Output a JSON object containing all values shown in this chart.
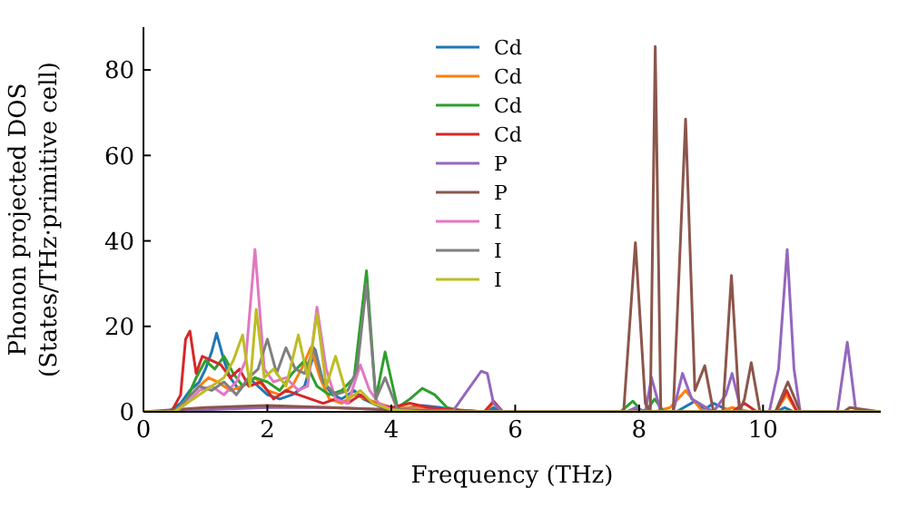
{
  "chart_data": {
    "type": "line",
    "xlabel": "Frequency (THz)",
    "ylabel": "Phonon projected DOS\n(States/THz·primitive cell)",
    "xlim": [
      0,
      11.9
    ],
    "ylim": [
      0,
      90
    ],
    "xticks": [
      0,
      2,
      4,
      6,
      8,
      10
    ],
    "yticks": [
      0,
      20,
      40,
      60,
      80
    ],
    "legend": "top",
    "grid": false,
    "series": [
      {
        "name": "Cd",
        "color": "#1f77b4",
        "x": [
          0,
          0.4,
          0.6,
          0.75,
          0.9,
          1.0,
          1.1,
          1.18,
          1.3,
          1.4,
          1.55,
          1.7,
          1.85,
          2.0,
          2.2,
          2.4,
          2.6,
          2.77,
          2.9,
          3.05,
          3.2,
          3.4,
          3.55,
          3.7,
          3.85,
          4.0,
          4.3,
          4.5,
          4.8,
          5.0,
          5.5,
          5.65,
          5.8,
          7.8,
          7.95,
          8.1,
          8.3,
          8.6,
          8.9,
          9.05,
          9.2,
          9.5,
          9.8,
          10.2,
          10.35,
          10.5,
          11.9
        ],
        "values": [
          0,
          0,
          2,
          5,
          7,
          10,
          14,
          18.4,
          12,
          8,
          5,
          8,
          6,
          4,
          3,
          4,
          6,
          14.6,
          7,
          4,
          3,
          5,
          3,
          2,
          1,
          0.5,
          1,
          1.5,
          1,
          0.5,
          0,
          1,
          0,
          0,
          1,
          0,
          0,
          0,
          2.5,
          0.5,
          2,
          0,
          0,
          0,
          1,
          0,
          0
        ]
      },
      {
        "name": "Cd",
        "color": "#ff7f0e",
        "x": [
          0.7,
          0.9,
          1.05,
          1.2,
          1.4,
          1.6,
          1.8,
          2.0,
          2.2,
          2.4,
          2.55,
          2.7,
          2.85,
          3.0,
          3.2,
          3.4,
          3.6,
          3.8,
          4.0,
          4.5,
          5.0,
          5.5,
          5.65,
          5.8,
          7.8,
          8.25,
          8.5,
          8.75,
          9.0,
          9.3,
          9.5,
          9.8,
          10.2,
          10.38,
          10.55,
          11.9
        ],
        "values": [
          3,
          6,
          8,
          7,
          5,
          6,
          8,
          5,
          4,
          6,
          10,
          15,
          8,
          3,
          2,
          4,
          3,
          2,
          1,
          1,
          0.5,
          0,
          2,
          0,
          0,
          0,
          1,
          5,
          0.5,
          0,
          1,
          0,
          0,
          4,
          0,
          0
        ]
      },
      {
        "name": "Cd",
        "color": "#2ca02c",
        "x": [
          0,
          0.5,
          0.7,
          0.85,
          1.0,
          1.15,
          1.3,
          1.45,
          1.6,
          1.8,
          2.0,
          2.2,
          2.4,
          2.6,
          2.8,
          3.0,
          3.2,
          3.4,
          3.6,
          3.75,
          3.9,
          4.1,
          4.3,
          4.5,
          4.7,
          4.9,
          5.2,
          7.7,
          7.9,
          8.05,
          8.15,
          8.25,
          8.4,
          11.9
        ],
        "values": [
          0,
          0,
          3,
          8,
          12,
          10,
          13,
          9,
          6,
          8,
          7,
          5,
          9,
          12,
          6,
          4,
          5,
          8,
          33,
          3,
          14,
          1,
          3,
          5.5,
          4,
          1,
          0,
          0,
          2.5,
          0,
          1,
          3,
          0,
          0
        ]
      },
      {
        "name": "Cd",
        "color": "#d62728",
        "x": [
          0,
          0.45,
          0.6,
          0.68,
          0.75,
          0.85,
          0.95,
          1.1,
          1.25,
          1.4,
          1.55,
          1.7,
          1.9,
          2.1,
          2.3,
          2.5,
          2.7,
          2.9,
          3.1,
          3.3,
          3.5,
          3.7,
          4.0,
          4.3,
          4.6,
          5.0,
          5.5,
          5.65,
          5.8,
          9.5,
          9.7,
          9.9,
          10.2,
          10.38,
          10.55,
          11.9
        ],
        "values": [
          0,
          0,
          4,
          17,
          18.9,
          9,
          13,
          12,
          11,
          8,
          10,
          6,
          7,
          3,
          5,
          4,
          3,
          2,
          3,
          2,
          4,
          2,
          1,
          2,
          1,
          0.5,
          0,
          2.5,
          0,
          0,
          2,
          0,
          0,
          5,
          0,
          0
        ]
      },
      {
        "name": "P",
        "color": "#9467bd",
        "x": [
          0,
          1.0,
          2.0,
          3.0,
          4.0,
          5.0,
          5.45,
          5.55,
          5.65,
          5.8,
          7.8,
          7.95,
          8.1,
          8.2,
          8.35,
          8.55,
          8.7,
          8.85,
          9.2,
          9.4,
          9.5,
          9.65,
          10.1,
          10.25,
          10.39,
          10.5,
          10.6,
          11.2,
          11.36,
          11.5,
          11.9
        ],
        "values": [
          0,
          0.5,
          1,
          1,
          0.5,
          0.3,
          9.5,
          9,
          2,
          0,
          0,
          1,
          0,
          8,
          0,
          0,
          9,
          3,
          0,
          4,
          9,
          0,
          0,
          10,
          38,
          10,
          0,
          0,
          16.3,
          0,
          0
        ]
      },
      {
        "name": "P",
        "color": "#8c564b",
        "x": [
          0,
          1,
          2,
          3,
          4,
          5,
          7.75,
          7.94,
          8.1,
          8.18,
          8.26,
          8.35,
          8.55,
          8.75,
          8.9,
          9.06,
          9.2,
          9.35,
          9.49,
          9.62,
          9.7,
          9.81,
          9.95,
          10.2,
          10.4,
          10.6,
          11.3,
          11.4,
          11.9
        ],
        "values": [
          0,
          1,
          1.5,
          1,
          0.5,
          0,
          0,
          39.6,
          2,
          0,
          85.5,
          0,
          0,
          68.5,
          5,
          10.8,
          0,
          0,
          31.9,
          0,
          3,
          11.5,
          0,
          0,
          7,
          0,
          0,
          1,
          0
        ]
      },
      {
        "name": "I",
        "color": "#e377c2",
        "x": [
          0,
          0.5,
          0.7,
          0.9,
          1.1,
          1.3,
          1.5,
          1.65,
          1.8,
          1.95,
          2.1,
          2.3,
          2.5,
          2.65,
          2.8,
          2.95,
          3.1,
          3.3,
          3.5,
          3.65,
          3.8,
          4.0,
          4.5,
          11.9
        ],
        "values": [
          0,
          0,
          2,
          5,
          6,
          4,
          7,
          12,
          38,
          10,
          7,
          8,
          5,
          6,
          24.5,
          10,
          3,
          2,
          11,
          5,
          2,
          0.5,
          0,
          0
        ]
      },
      {
        "name": "I",
        "color": "#7f7f7f",
        "x": [
          0,
          0.5,
          0.7,
          0.9,
          1.1,
          1.3,
          1.5,
          1.7,
          1.85,
          2.0,
          2.15,
          2.3,
          2.45,
          2.6,
          2.75,
          2.9,
          3.1,
          3.3,
          3.45,
          3.6,
          3.75,
          3.9,
          4.1,
          4.5,
          11.9
        ],
        "values": [
          0,
          0,
          3,
          6,
          5,
          7,
          4,
          8,
          10,
          17,
          9,
          15,
          10,
          9,
          15,
          7,
          4,
          5,
          10,
          30,
          3,
          8,
          0.5,
          0,
          0
        ]
      },
      {
        "name": "I",
        "color": "#bcbd22",
        "x": [
          0,
          0.5,
          0.7,
          0.9,
          1.1,
          1.3,
          1.45,
          1.6,
          1.72,
          1.82,
          1.95,
          2.1,
          2.3,
          2.5,
          2.65,
          2.8,
          2.95,
          3.1,
          3.3,
          3.5,
          3.7,
          4.0,
          4.5,
          11.9
        ],
        "values": [
          0,
          0,
          2,
          4,
          6,
          8,
          12,
          18,
          6,
          24,
          8,
          10,
          6,
          18,
          8,
          23,
          6,
          13,
          3,
          5,
          2,
          0.5,
          0,
          0
        ]
      }
    ]
  }
}
